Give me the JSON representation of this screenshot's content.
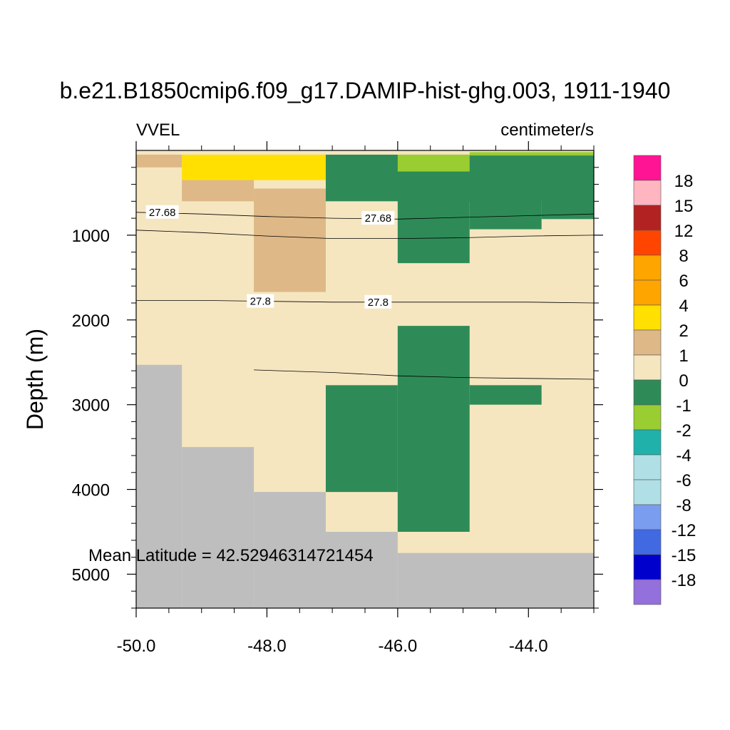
{
  "chart_data": {
    "type": "heatmap",
    "title": "b.e21.B1850cmip6.f09_g17.DAMIP-hist-ghg.003, 1911-1940",
    "left_string": "VVEL",
    "right_string": "centimeter/s",
    "ylabel": "Depth (m)",
    "xlabel": "",
    "annotation": "Mean Latitude = 42.52946314721454",
    "xlim": [
      -50.0,
      -43.0
    ],
    "ylim": [
      0,
      5400
    ],
    "y_reversed": true,
    "x_ticks": [
      "-50.0",
      "-48.0",
      "-46.0",
      "-44.0"
    ],
    "x_tick_values": [
      -50.0,
      -48.0,
      -46.0,
      -44.0
    ],
    "y_ticks": [
      "1000",
      "2000",
      "3000",
      "4000",
      "5000"
    ],
    "y_tick_values": [
      1000,
      2000,
      3000,
      4000,
      5000
    ],
    "colorbar": {
      "labels": [
        "18",
        "15",
        "12",
        "8",
        "6",
        "4",
        "2",
        "1",
        "0",
        "-1",
        "-2",
        "-4",
        "-6",
        "-8",
        "-12",
        "-15",
        "-18"
      ],
      "colors_top_to_bottom": [
        "#ff1493",
        "#ffb6c1",
        "#b22222",
        "#ff4500",
        "#ffa500",
        "#ffa500",
        "#ffe000",
        "#deb887",
        "#f5e6c0",
        "#2e8b57",
        "#9acd32",
        "#20b2aa",
        "#b0e0e6",
        "#b0e0e6",
        "#7b9df0",
        "#4169e1",
        "#0000cd",
        "#9370db"
      ]
    },
    "colors": {
      "c_2_4": "#ffe000",
      "c_1_2": "#deb887",
      "c_0_1": "#f5e6c0",
      "c_m1_0": "#2e8b57",
      "c_m2_m1": "#9acd32",
      "land": "#bebebe"
    },
    "cells": [
      {
        "x0": -50.0,
        "x1": -43.0,
        "y0": 0,
        "y1": 5400,
        "c": "c_0_1"
      },
      {
        "x0": -50.0,
        "x1": -49.3,
        "y0": 50,
        "y1": 200,
        "c": "c_1_2"
      },
      {
        "x0": -49.3,
        "x1": -47.1,
        "y0": 50,
        "y1": 350,
        "c": "c_2_4"
      },
      {
        "x0": -49.3,
        "x1": -48.2,
        "y0": 350,
        "y1": 600,
        "c": "c_1_2"
      },
      {
        "x0": -48.2,
        "x1": -47.1,
        "y0": 450,
        "y1": 1670,
        "c": "c_1_2"
      },
      {
        "x0": -47.1,
        "x1": -43.0,
        "y0": 50,
        "y1": 600,
        "c": "c_m1_0"
      },
      {
        "x0": -46.0,
        "x1": -44.9,
        "y0": 50,
        "y1": 250,
        "c": "c_m2_m1"
      },
      {
        "x0": -44.9,
        "x1": -43.0,
        "y0": 20,
        "y1": 60,
        "c": "c_m2_m1"
      },
      {
        "x0": -46.0,
        "x1": -44.9,
        "y0": 250,
        "y1": 1330,
        "c": "c_m1_0"
      },
      {
        "x0": -44.9,
        "x1": -43.8,
        "y0": 250,
        "y1": 930,
        "c": "c_m1_0"
      },
      {
        "x0": -43.8,
        "x1": -43.0,
        "y0": 250,
        "y1": 810,
        "c": "c_m1_0"
      },
      {
        "x0": -46.0,
        "x1": -44.9,
        "y0": 2070,
        "y1": 4500,
        "c": "c_m1_0"
      },
      {
        "x0": -47.1,
        "x1": -46.0,
        "y0": 2770,
        "y1": 4030,
        "c": "c_m1_0"
      },
      {
        "x0": -44.9,
        "x1": -43.8,
        "y0": 2770,
        "y1": 3000,
        "c": "c_m1_0"
      },
      {
        "x0": -50.0,
        "x1": -49.3,
        "y0": 2530,
        "y1": 5400,
        "c": "land"
      },
      {
        "x0": -49.3,
        "x1": -48.2,
        "y0": 3500,
        "y1": 5400,
        "c": "land"
      },
      {
        "x0": -48.2,
        "x1": -47.1,
        "y0": 4030,
        "y1": 5400,
        "c": "land"
      },
      {
        "x0": -47.1,
        "x1": -46.0,
        "y0": 4500,
        "y1": 5400,
        "c": "land"
      },
      {
        "x0": -46.0,
        "x1": -43.0,
        "y0": 4750,
        "y1": 5400,
        "c": "land"
      }
    ],
    "contours": [
      {
        "label": "27.68",
        "points": [
          [
            -50.0,
            730
          ],
          [
            -49.0,
            750
          ],
          [
            -48.0,
            780
          ],
          [
            -47.0,
            800
          ],
          [
            -46.0,
            810
          ],
          [
            -45.0,
            790
          ],
          [
            -44.0,
            770
          ],
          [
            -43.0,
            750
          ]
        ],
        "label_at": [
          [
            -49.6,
            730
          ],
          [
            -46.3,
            800
          ]
        ]
      },
      {
        "label": "",
        "points": [
          [
            -50.0,
            940
          ],
          [
            -49.0,
            970
          ],
          [
            -48.0,
            1010
          ],
          [
            -47.0,
            1040
          ],
          [
            -46.0,
            1040
          ],
          [
            -45.0,
            1030
          ],
          [
            -44.0,
            1010
          ],
          [
            -43.0,
            1000
          ]
        ],
        "label_at": []
      },
      {
        "label": "27.8",
        "points": [
          [
            -50.0,
            1770
          ],
          [
            -49.0,
            1770
          ],
          [
            -48.0,
            1780
          ],
          [
            -47.0,
            1790
          ],
          [
            -46.0,
            1790
          ],
          [
            -45.0,
            1790
          ],
          [
            -44.0,
            1790
          ],
          [
            -43.0,
            1800
          ]
        ],
        "label_at": [
          [
            -48.1,
            1780
          ],
          [
            -46.3,
            1790
          ]
        ]
      },
      {
        "label": "",
        "points": [
          [
            -48.2,
            2590
          ],
          [
            -47.0,
            2620
          ],
          [
            -46.0,
            2660
          ],
          [
            -45.0,
            2680
          ],
          [
            -44.0,
            2690
          ],
          [
            -43.0,
            2700
          ]
        ],
        "label_at": []
      }
    ]
  }
}
